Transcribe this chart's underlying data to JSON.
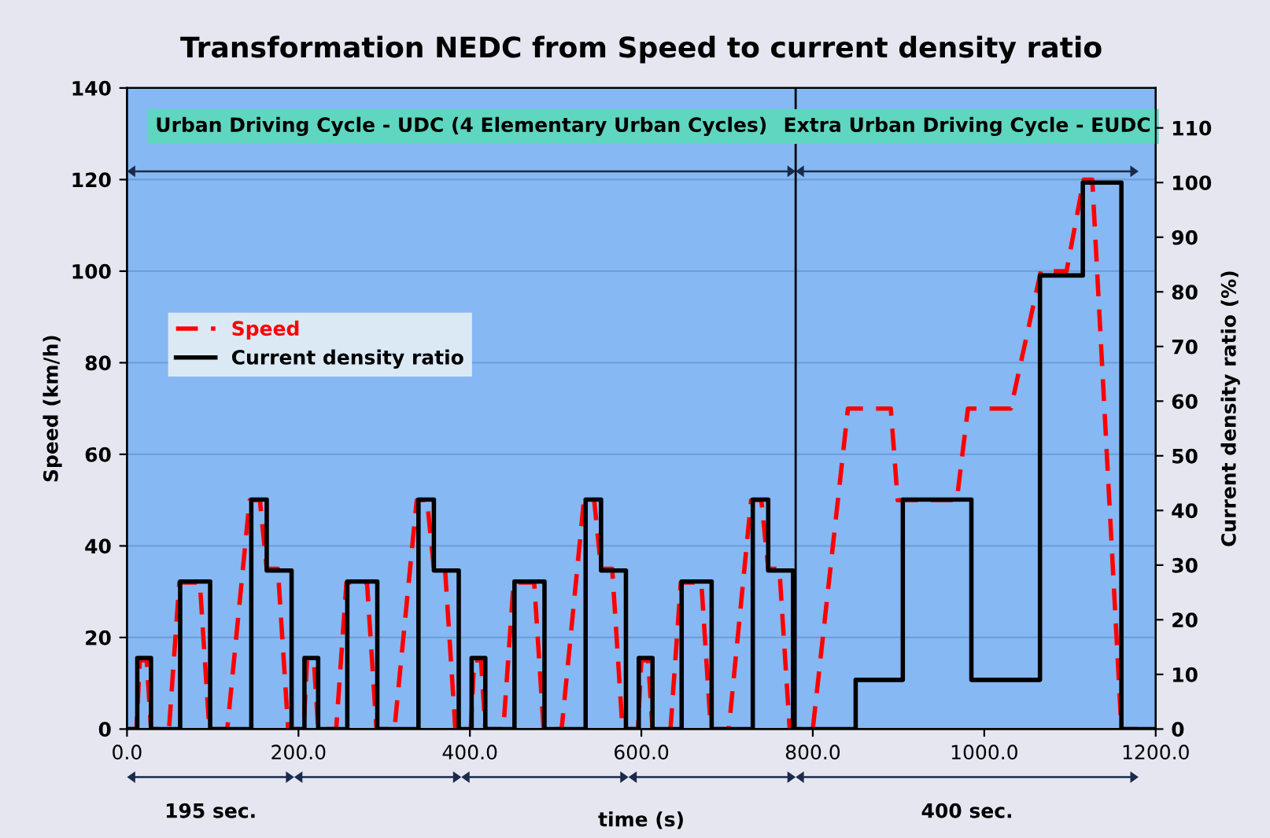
{
  "chart_data": {
    "type": "line",
    "title": "Transformation NEDC from Speed to current density ratio",
    "xlabel": "time (s)",
    "ylabel": "Speed (km/h)",
    "y2label": "Current density ratio (%)",
    "xlim": [
      0,
      1200
    ],
    "xticks": [
      {
        "value": 0,
        "label": "0.0"
      },
      {
        "value": 200,
        "label": "200.0"
      },
      {
        "value": 400,
        "label": "400.0"
      },
      {
        "value": 600,
        "label": "600.0"
      },
      {
        "value": 800,
        "label": "800.0"
      },
      {
        "value": 1000,
        "label": "1000.0"
      },
      {
        "value": 1200,
        "label": "1200.0"
      }
    ],
    "ylim": [
      0,
      140
    ],
    "yticks": [
      0,
      20,
      40,
      60,
      80,
      100,
      120,
      140
    ],
    "y2lim": [
      0,
      117.3
    ],
    "y2ticks": [
      0,
      10,
      20,
      30,
      40,
      50,
      60,
      70,
      80,
      90,
      100,
      110
    ],
    "grid": "y",
    "legend": "left",
    "series": [
      {
        "name": "Speed",
        "color": "#ff0000",
        "line_style": "dashed",
        "x": [
          0,
          11,
          15,
          23,
          28,
          49,
          61,
          85,
          96,
          117,
          143,
          155,
          163,
          176,
          188,
          195,
          206,
          210,
          218,
          223,
          244,
          256,
          280,
          291,
          312,
          338,
          350,
          358,
          371,
          383,
          390,
          401,
          405,
          413,
          418,
          439,
          451,
          475,
          486,
          507,
          533,
          545,
          553,
          566,
          578,
          585,
          596,
          600,
          608,
          613,
          634,
          646,
          670,
          681,
          702,
          728,
          740,
          748,
          761,
          773,
          780,
          800,
          841,
          891,
          899,
          968,
          981,
          1031,
          1066,
          1096,
          1116,
          1126,
          1160,
          1180
        ],
        "values": [
          0,
          0,
          15,
          15,
          0,
          0,
          32,
          32,
          0,
          0,
          50,
          50,
          35,
          35,
          0,
          0,
          0,
          15,
          15,
          0,
          0,
          32,
          32,
          0,
          0,
          50,
          50,
          35,
          35,
          0,
          0,
          0,
          15,
          15,
          0,
          0,
          32,
          32,
          0,
          0,
          50,
          50,
          35,
          35,
          0,
          0,
          0,
          15,
          15,
          0,
          0,
          32,
          32,
          0,
          0,
          50,
          50,
          35,
          35,
          0,
          0,
          0,
          70,
          70,
          50,
          50,
          70,
          70,
          100,
          100,
          120,
          120,
          0,
          0
        ]
      },
      {
        "name": "Current density ratio",
        "type": "step",
        "axis": "y2",
        "color": "#000000",
        "line_style": "solid",
        "x": [
          0,
          12,
          28,
          62,
          97,
          145,
          163,
          192,
          207,
          223,
          257,
          292,
          340,
          358,
          387,
          402,
          418,
          452,
          487,
          535,
          553,
          582,
          597,
          613,
          647,
          682,
          730,
          748,
          777,
          850,
          905,
          985,
          1065,
          1115,
          1160,
          1200
        ],
        "values": [
          0,
          13,
          0,
          27,
          0,
          42,
          29,
          0,
          13,
          0,
          27,
          0,
          42,
          29,
          0,
          13,
          0,
          27,
          0,
          42,
          29,
          0,
          13,
          0,
          27,
          0,
          42,
          29,
          0,
          9,
          42,
          9,
          83,
          100,
          0,
          0
        ]
      }
    ],
    "ref_lines": [
      {
        "axis": "x",
        "value": 780,
        "color": "#000000",
        "line_style": "solid"
      }
    ],
    "annotations": [
      "Urban Driving Cycle - UDC (4 Elementary Urban Cycles)",
      "Extra Urban Driving Cycle - EUDC",
      "195 sec.",
      "400 sec."
    ]
  }
}
